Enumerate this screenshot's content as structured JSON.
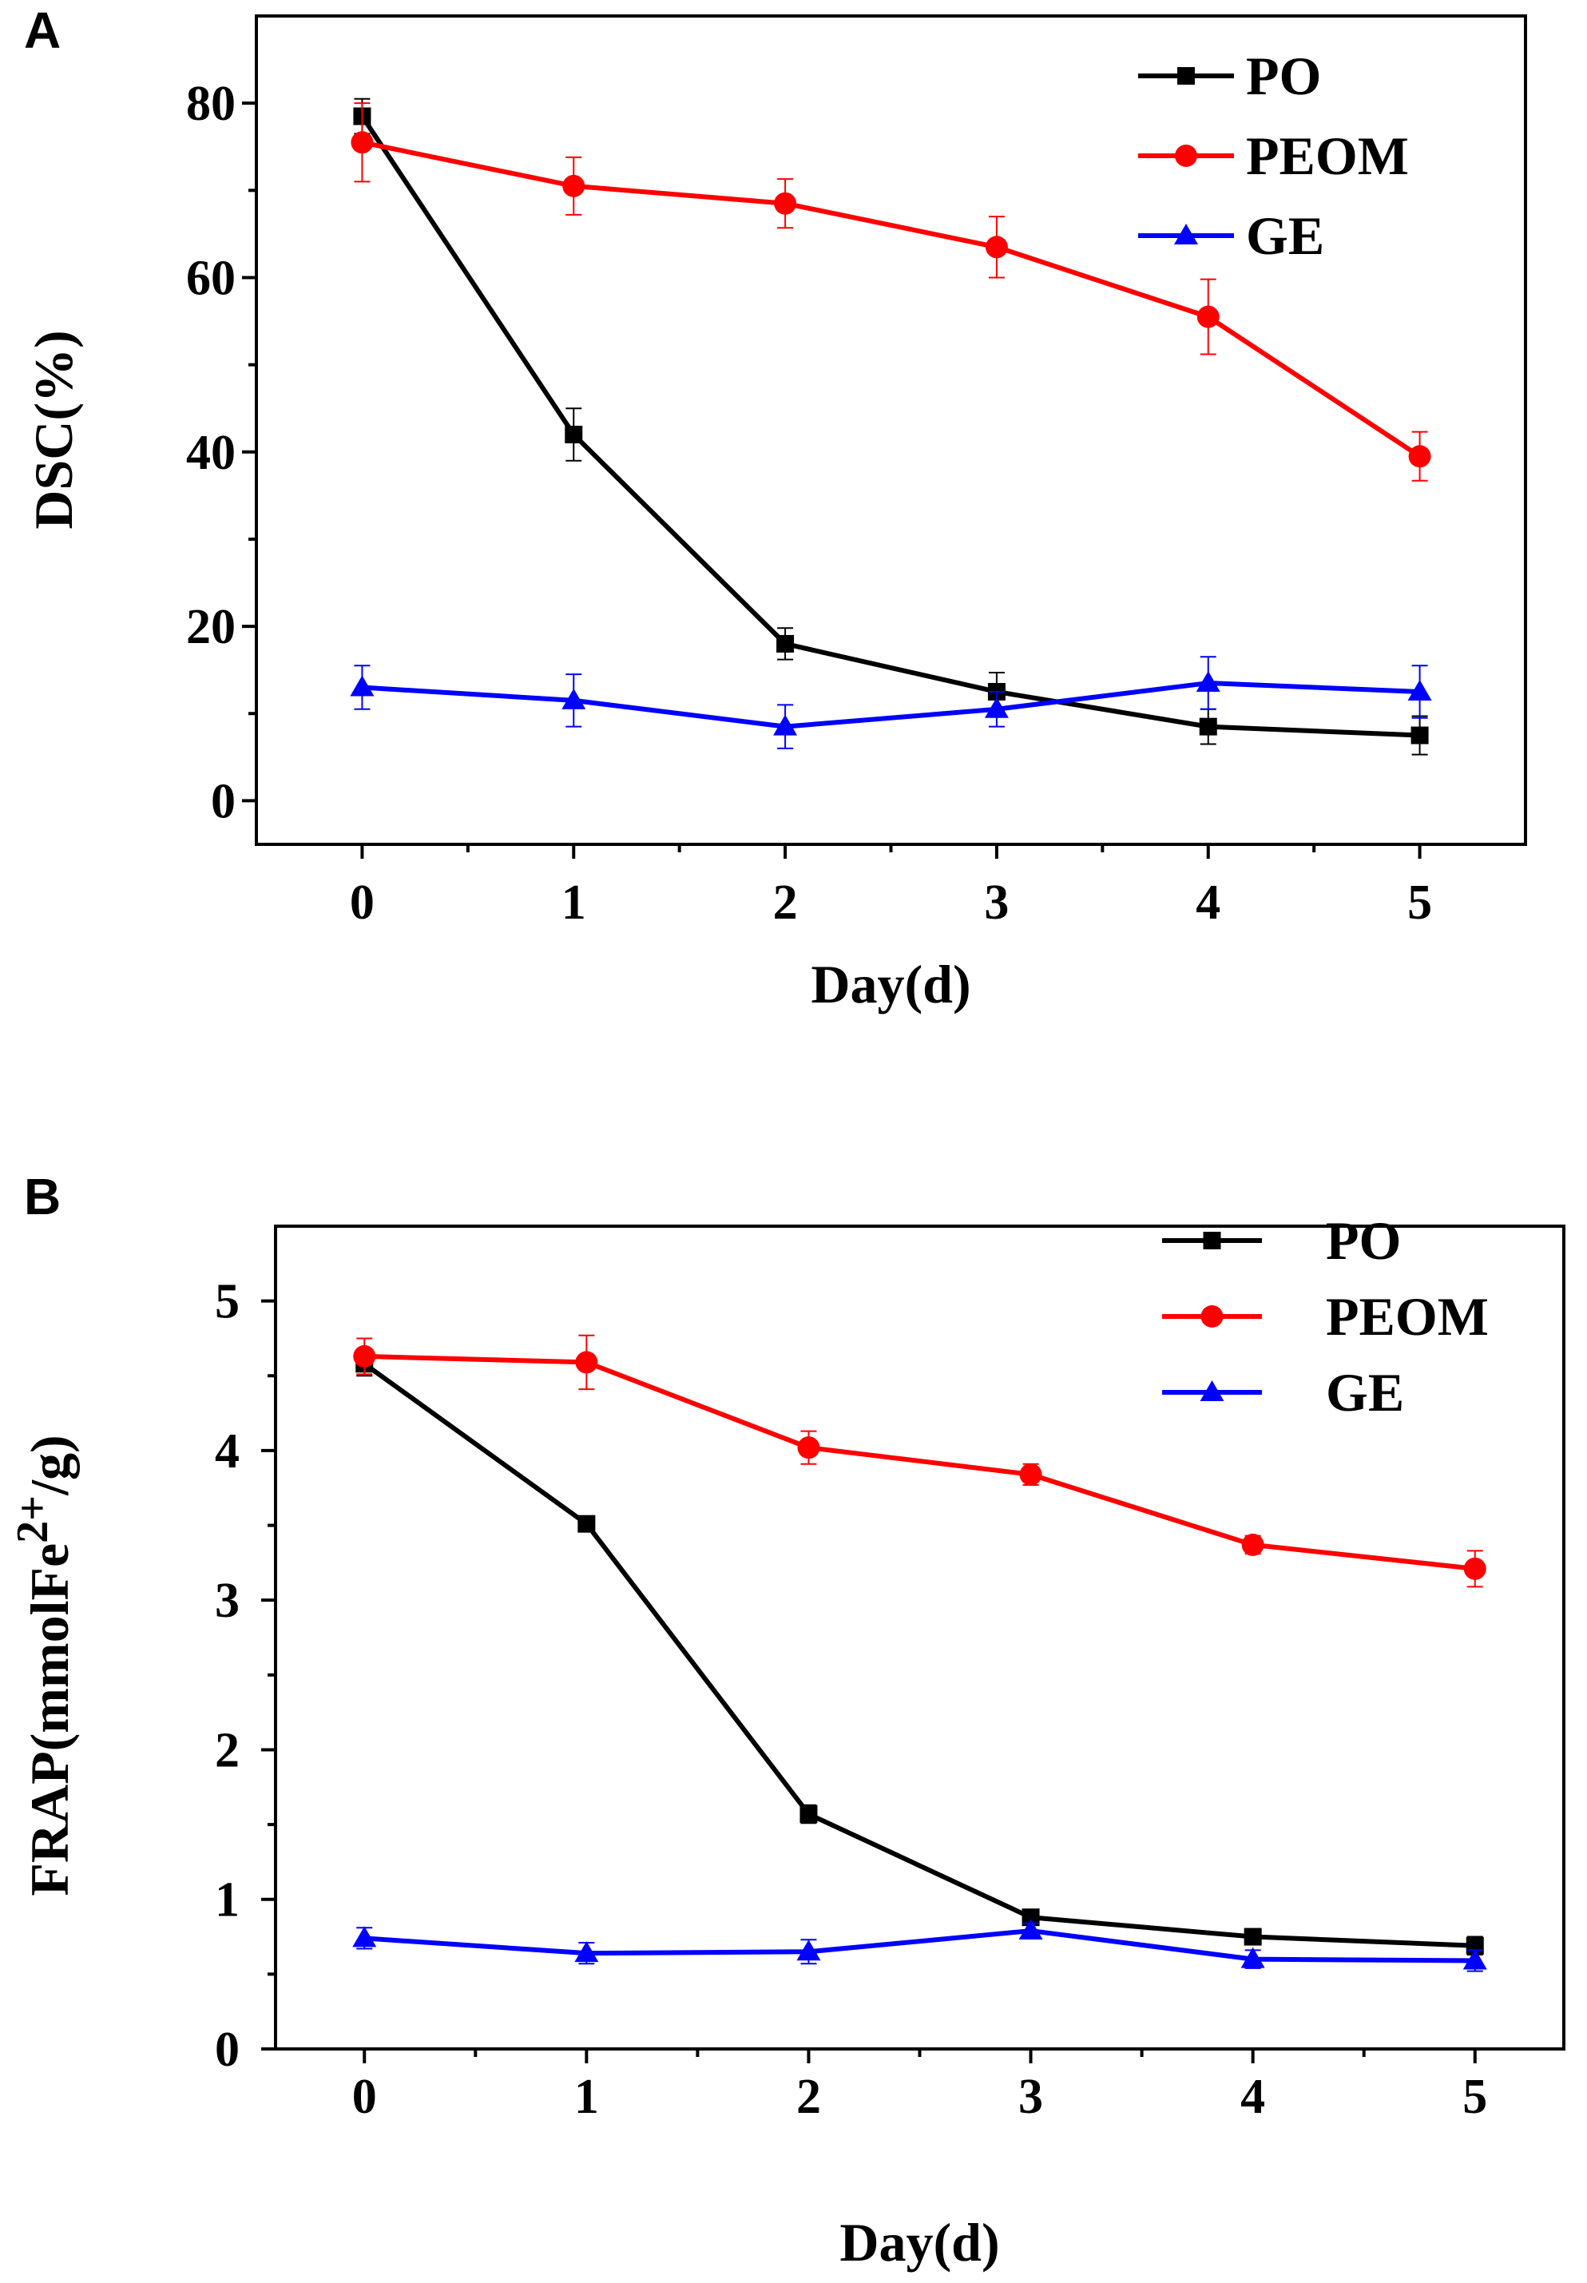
{
  "chart_data": [
    {
      "panel": "A",
      "type": "line",
      "xlabel": "Day(d)",
      "ylabel": "DSC(%)",
      "xlim": [
        -0.5,
        5.5
      ],
      "ylim": [
        -5,
        90
      ],
      "xticks": [
        0,
        1,
        2,
        3,
        4,
        5
      ],
      "yticks": [
        0,
        20,
        40,
        60,
        80
      ],
      "legend_position": "top-right",
      "x": [
        0,
        1,
        2,
        3,
        4,
        5
      ],
      "series": [
        {
          "name": "PO",
          "color": "#000000",
          "marker": "square",
          "values": [
            78.5,
            42.0,
            18.0,
            12.5,
            8.5,
            7.5
          ],
          "errors": [
            2.0,
            3.0,
            1.8,
            2.2,
            2.0,
            2.2
          ]
        },
        {
          "name": "PEOM",
          "color": "#ff0000",
          "marker": "circle",
          "values": [
            75.5,
            70.5,
            68.5,
            63.5,
            55.5,
            39.5
          ],
          "errors": [
            4.5,
            3.3,
            2.8,
            3.5,
            4.3,
            2.8
          ]
        },
        {
          "name": "GE",
          "color": "#0000ff",
          "marker": "triangle",
          "values": [
            13.0,
            11.5,
            8.5,
            10.5,
            13.5,
            12.5
          ],
          "errors": [
            2.5,
            3.0,
            2.5,
            2.0,
            3.0,
            3.0
          ]
        }
      ]
    },
    {
      "panel": "B",
      "type": "line",
      "xlabel": "Day(d)",
      "ylabel_main": "FRAP(mmolFe",
      "ylabel_sup": "2+",
      "ylabel_end": "/g)",
      "xlim": [
        -0.4,
        5.4
      ],
      "ylim": [
        0,
        5.5
      ],
      "xticks": [
        0,
        1,
        2,
        3,
        4,
        5
      ],
      "yticks": [
        0,
        1,
        2,
        3,
        4,
        5
      ],
      "legend_position": "top-right",
      "x": [
        0,
        1,
        2,
        3,
        4,
        5
      ],
      "series": [
        {
          "name": "PO",
          "color": "#000000",
          "marker": "square",
          "values": [
            4.58,
            3.51,
            1.57,
            0.88,
            0.75,
            0.69
          ],
          "errors": [
            0.08,
            0.05,
            0.06,
            0.05,
            0.04,
            0.06
          ]
        },
        {
          "name": "PEOM",
          "color": "#ff0000",
          "marker": "circle",
          "values": [
            4.63,
            4.59,
            4.02,
            3.84,
            3.37,
            3.21
          ],
          "errors": [
            0.12,
            0.18,
            0.11,
            0.07,
            0.06,
            0.12
          ]
        },
        {
          "name": "GE",
          "color": "#0000ff",
          "marker": "triangle",
          "values": [
            0.74,
            0.64,
            0.65,
            0.79,
            0.6,
            0.59
          ],
          "errors": [
            0.07,
            0.07,
            0.08,
            0.05,
            0.06,
            0.07
          ]
        }
      ]
    }
  ]
}
